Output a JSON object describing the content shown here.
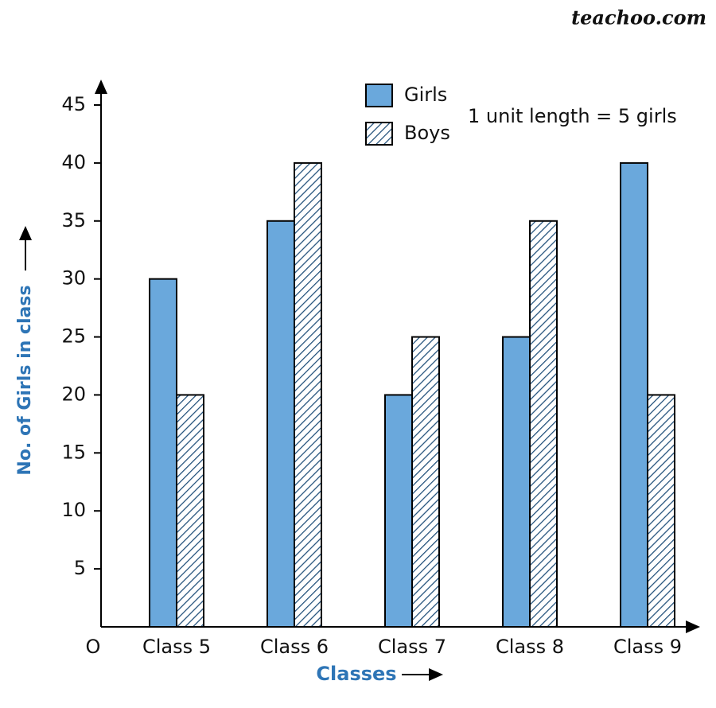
{
  "watermark": "teachoo.com",
  "chart_data": {
    "type": "bar",
    "categories": [
      "Class 5",
      "Class 6",
      "Class 7",
      "Class 8",
      "Class 9"
    ],
    "series": [
      {
        "name": "Girls",
        "color": "#6aa8dc",
        "pattern": "solid",
        "values": [
          30,
          35,
          20,
          25,
          40
        ]
      },
      {
        "name": "Boys",
        "color": "#1f4e79",
        "pattern": "hatch",
        "values": [
          20,
          40,
          25,
          35,
          20
        ]
      }
    ],
    "ylim": [
      0,
      45
    ],
    "yticks": [
      5,
      10,
      15,
      20,
      25,
      30,
      35,
      40,
      45
    ],
    "annotation": "1 unit length = 5 girls",
    "origin_label": "O",
    "x_label": "Classes",
    "y_label": "No. of Girls in class",
    "grid": false,
    "legend": "top"
  }
}
